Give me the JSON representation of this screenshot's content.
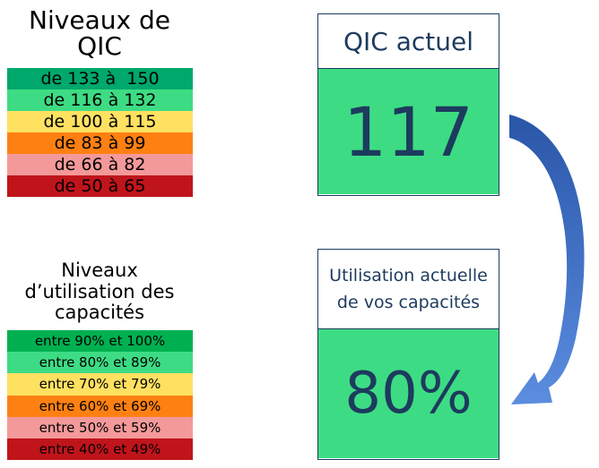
{
  "qic_levels": {
    "title_line1": "Niveaux de",
    "title_line2": "QIC",
    "bands": [
      {
        "label": "de 133 à  150",
        "color": "#00a86b"
      },
      {
        "label": "de 116 à 132",
        "color": "#3ddc84"
      },
      {
        "label": "de 100 à 115",
        "color": "#ffe162"
      },
      {
        "label": "de 83 à 99",
        "color": "#ff8012"
      },
      {
        "label": "de 66 à 82",
        "color": "#f4999a"
      },
      {
        "label": "de 50 à 65",
        "color": "#c0141b"
      }
    ]
  },
  "capacity_levels": {
    "title_line1": "Niveaux",
    "title_line2": "d’utilisation des",
    "title_line3": "capacités",
    "bands": [
      {
        "label": "entre 90% et 100%",
        "color": "#00b050"
      },
      {
        "label": "entre 80% et 89%",
        "color": "#3ddc84"
      },
      {
        "label": "entre 70% et 79%",
        "color": "#ffe162"
      },
      {
        "label": "entre 60% et 69%",
        "color": "#ff8012"
      },
      {
        "label": "entre 50% et 59%",
        "color": "#f4999a"
      },
      {
        "label": "entre 40% et 49%",
        "color": "#c0141b"
      }
    ]
  },
  "current_qic": {
    "header": "QIC actuel",
    "value": "117",
    "color": "#3ddc84"
  },
  "current_capacity": {
    "header_line1": "Utilisation actuelle",
    "header_line2": "de vos capacités",
    "value": "80%",
    "color": "#3ddc84"
  },
  "colors": {
    "text_dark_blue": "#1d3b5e",
    "arrow_blue": "#3b6fc4"
  }
}
